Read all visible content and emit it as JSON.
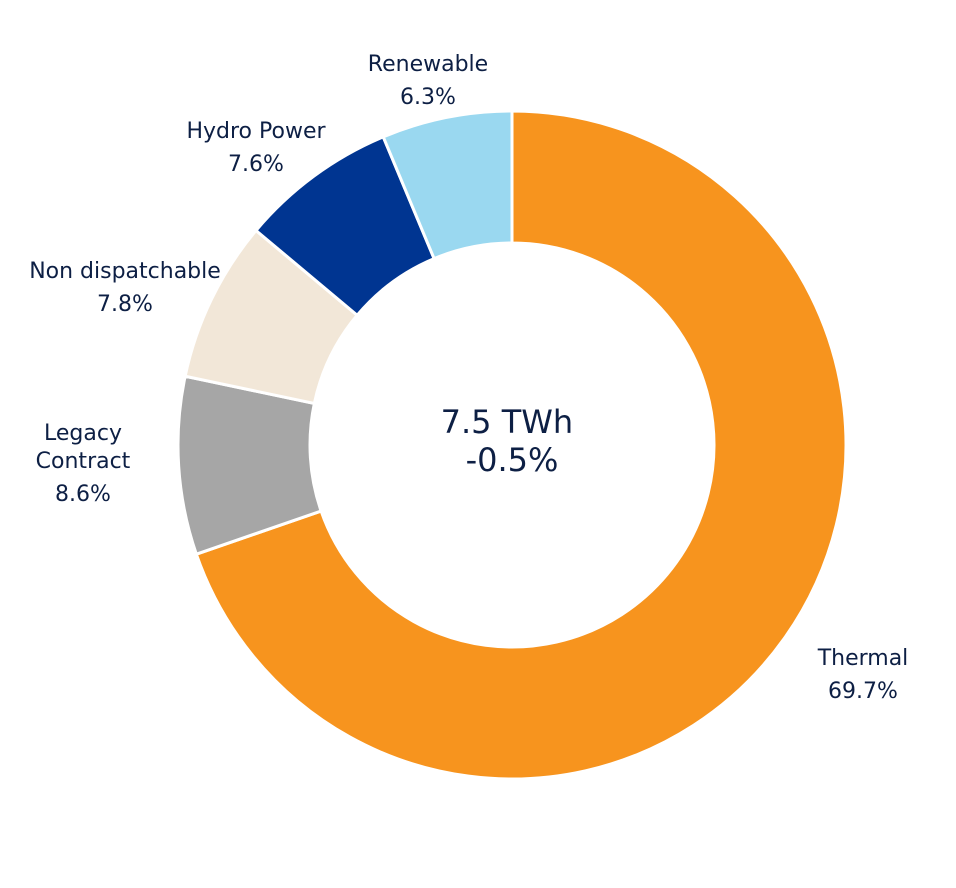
{
  "chart_data": {
    "type": "pie",
    "variant": "donut",
    "center_text": [
      "7.5 TWh",
      "-0.5%"
    ],
    "slices": [
      {
        "label": [
          "Thermal"
        ],
        "value": 69.7,
        "value_text": "69.7%",
        "color": "#F7941E"
      },
      {
        "label": [
          "Legacy",
          "Contract"
        ],
        "value": 8.6,
        "value_text": "8.6%",
        "color": "#A6A6A6"
      },
      {
        "label": [
          "Non dispatchable"
        ],
        "value": 7.8,
        "value_text": "7.8%",
        "color": "#F2E7D8"
      },
      {
        "label": [
          "Hydro Power"
        ],
        "value": 7.6,
        "value_text": "7.6%",
        "color": "#003591"
      },
      {
        "label": [
          "Renewable"
        ],
        "value": 6.3,
        "value_text": "6.3%",
        "color": "#9AD8F0"
      }
    ]
  }
}
